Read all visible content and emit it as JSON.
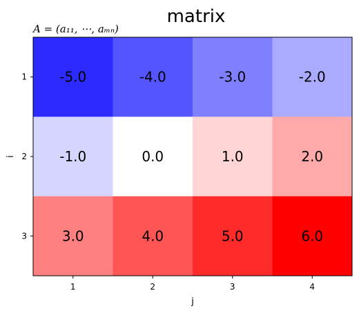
{
  "chart_data": {
    "type": "heatmap",
    "title": "matrix",
    "subtitle": "A = (a₁₁, ⋯, aₘₙ)",
    "xlabel": "j",
    "ylabel": "i",
    "x_ticks": [
      "1",
      "2",
      "3",
      "4"
    ],
    "y_ticks": [
      "1",
      "2",
      "3"
    ],
    "values": [
      [
        -5.0,
        -4.0,
        -3.0,
        -2.0
      ],
      [
        -1.0,
        0.0,
        1.0,
        2.0
      ],
      [
        3.0,
        4.0,
        5.0,
        6.0
      ]
    ],
    "value_labels": [
      [
        "-5.0",
        "-4.0",
        "-3.0",
        "-2.0"
      ],
      [
        "-1.0",
        "0.0",
        "1.0",
        "2.0"
      ],
      [
        "3.0",
        "4.0",
        "5.0",
        "6.0"
      ]
    ],
    "colormap": "bwr",
    "vmin": -6.0,
    "vmax": 6.0,
    "colors": {
      "negative": "#0000ff",
      "zero": "#ffffff",
      "positive": "#ff0000"
    }
  }
}
